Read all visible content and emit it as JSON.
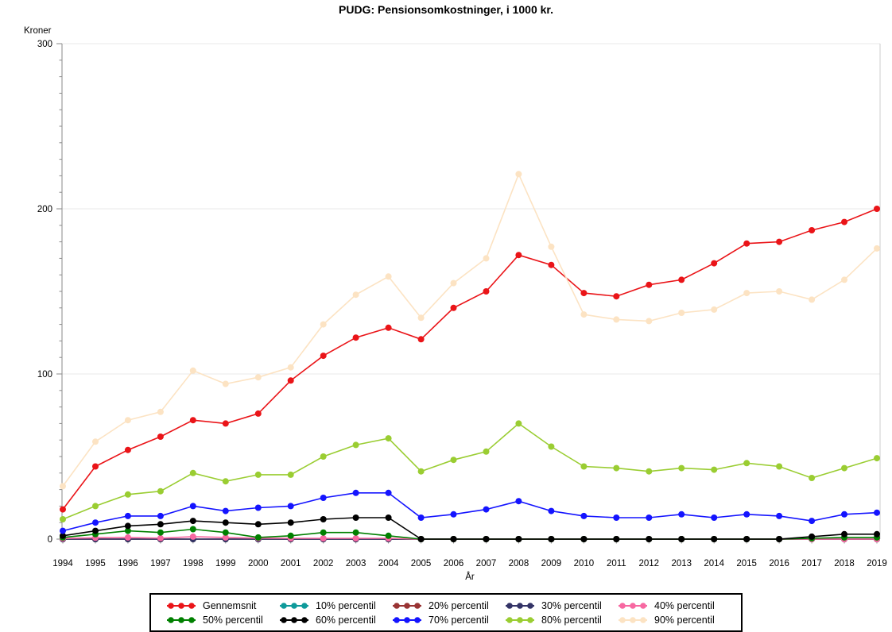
{
  "title": "PUDG: Pensionsomkostninger, i 1000 kr.",
  "chart_data": {
    "type": "line",
    "title": "PUDG: Pensionsomkostninger, i 1000 kr.",
    "ylabel": "Kroner",
    "xlabel": "År",
    "ylim": [
      0,
      300
    ],
    "y_major_ticks": [
      0,
      100,
      200,
      300
    ],
    "y_minor_step": 10,
    "grid": "horizontal major gridlines, light gray",
    "legend_position": "bottom",
    "x": [
      1994,
      1995,
      1996,
      1997,
      1998,
      1999,
      2000,
      2001,
      2002,
      2003,
      2004,
      2005,
      2006,
      2007,
      2008,
      2009,
      2010,
      2011,
      2012,
      2013,
      2014,
      2015,
      2016,
      2017,
      2018,
      2019
    ],
    "series": [
      {
        "name": "Gennemsnit",
        "color": "#ea1418",
        "values": [
          18,
          44,
          54,
          62,
          72,
          70,
          76,
          96,
          111,
          122,
          128,
          121,
          140,
          150,
          172,
          166,
          149,
          147,
          154,
          157,
          167,
          179,
          180,
          187,
          192,
          200
        ]
      },
      {
        "name": "10% percentil",
        "color": "#0e9a9a",
        "values": [
          0,
          0,
          0,
          0,
          0,
          0,
          0,
          0,
          0,
          0,
          0,
          0,
          0,
          0,
          0,
          0,
          0,
          0,
          0,
          0,
          0,
          0,
          0,
          0,
          0,
          0
        ]
      },
      {
        "name": "20% percentil",
        "color": "#993333",
        "values": [
          0,
          0,
          0,
          0,
          0,
          0,
          0,
          0,
          0,
          0,
          0,
          0,
          0,
          0,
          0,
          0,
          0,
          0,
          0,
          0,
          0,
          0,
          0,
          0,
          0,
          0
        ]
      },
      {
        "name": "30% percentil",
        "color": "#333366",
        "values": [
          0,
          0,
          0,
          0,
          0,
          0,
          0,
          0,
          0,
          0,
          0,
          0,
          0,
          0,
          0,
          0,
          0,
          0,
          0,
          0,
          0,
          0,
          0,
          0,
          0,
          0
        ]
      },
      {
        "name": "40% percentil",
        "color": "#f768a1",
        "values": [
          0.4,
          0.8,
          1,
          0.6,
          1.5,
          1,
          0.6,
          0.5,
          0.5,
          0.5,
          0.5,
          0,
          0,
          0,
          0,
          0,
          0,
          0,
          0,
          0,
          0,
          0,
          0,
          0,
          0,
          0
        ]
      },
      {
        "name": "50% percentil",
        "color": "#008000",
        "values": [
          1,
          3,
          5,
          4,
          6,
          4,
          1,
          2,
          4,
          4,
          2,
          0,
          0,
          0,
          0,
          0,
          0,
          0,
          0,
          0,
          0,
          0,
          0,
          0.5,
          1,
          1
        ]
      },
      {
        "name": "60% percentil",
        "color": "#000000",
        "values": [
          2,
          5,
          8,
          9,
          11,
          10,
          9,
          10,
          12,
          13,
          13,
          0,
          0,
          0,
          0,
          0,
          0,
          0,
          0,
          0,
          0,
          0,
          0,
          1.5,
          3,
          3
        ]
      },
      {
        "name": "70% percentil",
        "color": "#1414ff",
        "values": [
          5,
          10,
          14,
          14,
          20,
          17,
          19,
          20,
          25,
          28,
          28,
          13,
          15,
          18,
          23,
          17,
          14,
          13,
          13,
          15,
          13,
          15,
          14,
          11,
          15,
          16
        ]
      },
      {
        "name": "80% percentil",
        "color": "#9acd32",
        "values": [
          12,
          20,
          27,
          29,
          40,
          35,
          39,
          39,
          50,
          57,
          61,
          41,
          48,
          53,
          70,
          56,
          44,
          43,
          41,
          43,
          42,
          46,
          44,
          37,
          43,
          49
        ]
      },
      {
        "name": "90% percentil",
        "color": "#fce3c3",
        "values": [
          32,
          59,
          72,
          77,
          102,
          94,
          98,
          104,
          130,
          148,
          159,
          134,
          155,
          170,
          221,
          177,
          136,
          133,
          132,
          137,
          139,
          149,
          150,
          145,
          157,
          176
        ]
      }
    ]
  },
  "colors": {
    "gridline": "#e9e9e9",
    "axis": "#8a8a8a",
    "frame_right": "#cccccc",
    "text": "#000000"
  }
}
